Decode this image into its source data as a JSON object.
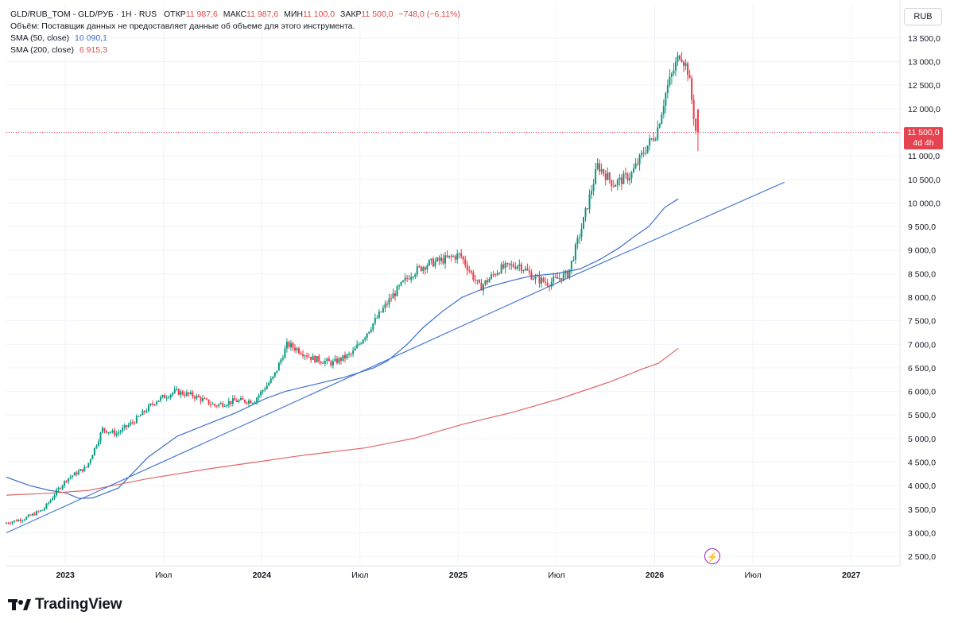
{
  "legend": {
    "symbol": "GLD/RUB_TOM - GLD/РУБ · 1H · RUS",
    "open_label": "ОТКР",
    "open_value": "11 987,6",
    "high_label": "МАКС",
    "high_value": "11 987,6",
    "low_label": "МИН",
    "low_value": "11 100,0",
    "close_label": "ЗАКР",
    "close_value": "11 500,0",
    "change_value": "−748,0 (−6,11%)",
    "volume_note": "Объём: Поставщик данных не предоставляет данные об объеме для этого инструмента.",
    "sma50_label": "SMA (50, close)",
    "sma50_value": "10 090,1",
    "sma200_label": "SMA (200, close)",
    "sma200_value": "6 915,3"
  },
  "currency_button": "RUB",
  "price_tag": {
    "price": "11 500,0",
    "countdown": "4d 4h"
  },
  "brand": "TradingView",
  "colors": {
    "up": "#089981",
    "down": "#f23645",
    "sma50": "#3d6dcc",
    "sma200": "#e06666",
    "trend": "#4a7ad6",
    "grid": "#f0f3fa",
    "text": "#131722"
  },
  "chart_data": {
    "type": "candlestick",
    "title": "GLD/RUB_TOM - GLD/РУБ",
    "ylim": [
      2300,
      13700
    ],
    "xlim": [
      2022.68,
      2027.22
    ],
    "y_ticks": [
      2500,
      3000,
      3500,
      4000,
      4500,
      5000,
      5500,
      6000,
      6500,
      7000,
      7500,
      8000,
      8500,
      9000,
      9500,
      10000,
      10500,
      11000,
      11500,
      12000,
      12500,
      13000,
      13500
    ],
    "y_tick_labels": [
      "2 500,0",
      "3 000,0",
      "3 500,0",
      "4 000,0",
      "4 500,0",
      "5 000,0",
      "5 500,0",
      "6 000,0",
      "6 500,0",
      "7 000,0",
      "7 500,0",
      "8 000,0",
      "8 500,0",
      "9 000,0",
      "9 500,0",
      "10 000,0",
      "10 500,0",
      "11 000,0",
      "11 500,0",
      "12 000,0",
      "12 500,0",
      "13 000,0",
      "13 500,0"
    ],
    "x_ticks": [
      {
        "t": 2022.98,
        "label": "2023",
        "bold": true
      },
      {
        "t": 2023.48,
        "label": "Июл",
        "bold": false
      },
      {
        "t": 2023.98,
        "label": "2024",
        "bold": true
      },
      {
        "t": 2024.48,
        "label": "Июл",
        "bold": false
      },
      {
        "t": 2024.98,
        "label": "2025",
        "bold": true
      },
      {
        "t": 2025.48,
        "label": "Июл",
        "bold": false
      },
      {
        "t": 2025.98,
        "label": "2026",
        "bold": true
      },
      {
        "t": 2026.48,
        "label": "Июл",
        "bold": false
      },
      {
        "t": 2026.98,
        "label": "2027",
        "bold": true
      }
    ],
    "price_anchors": [
      [
        2022.68,
        3200
      ],
      [
        2022.78,
        3300
      ],
      [
        2022.88,
        3500
      ],
      [
        2022.95,
        3900
      ],
      [
        2023.0,
        4150
      ],
      [
        2023.1,
        4400
      ],
      [
        2023.18,
        5200
      ],
      [
        2023.25,
        5100
      ],
      [
        2023.35,
        5400
      ],
      [
        2023.45,
        5800
      ],
      [
        2023.55,
        6000
      ],
      [
        2023.65,
        5900
      ],
      [
        2023.75,
        5700
      ],
      [
        2023.85,
        5800
      ],
      [
        2023.95,
        5800
      ],
      [
        2024.05,
        6300
      ],
      [
        2024.12,
        7000
      ],
      [
        2024.17,
        6900
      ],
      [
        2024.25,
        6700
      ],
      [
        2024.35,
        6600
      ],
      [
        2024.45,
        6800
      ],
      [
        2024.55,
        7400
      ],
      [
        2024.65,
        8000
      ],
      [
        2024.75,
        8500
      ],
      [
        2024.83,
        8700
      ],
      [
        2024.92,
        8800
      ],
      [
        2025.0,
        8900
      ],
      [
        2025.1,
        8200
      ],
      [
        2025.2,
        8600
      ],
      [
        2025.3,
        8700
      ],
      [
        2025.38,
        8400
      ],
      [
        2025.45,
        8300
      ],
      [
        2025.55,
        8500
      ],
      [
        2025.62,
        9500
      ],
      [
        2025.7,
        10800
      ],
      [
        2025.78,
        10400
      ],
      [
        2025.87,
        10600
      ],
      [
        2025.95,
        11200
      ],
      [
        2026.0,
        11500
      ],
      [
        2026.05,
        12400
      ],
      [
        2026.12,
        13200
      ],
      [
        2026.16,
        12800
      ],
      [
        2026.2,
        11500
      ]
    ],
    "last_candle": {
      "open": 11987.6,
      "high": 11987.6,
      "low": 11100.0,
      "close": 11500.0
    },
    "series": [
      {
        "name": "SMA (50, close)",
        "points": [
          [
            2022.68,
            4180
          ],
          [
            2022.8,
            4000
          ],
          [
            2022.9,
            3900
          ],
          [
            2022.98,
            3850
          ],
          [
            2023.05,
            3730
          ],
          [
            2023.12,
            3740
          ],
          [
            2023.25,
            3950
          ],
          [
            2023.4,
            4600
          ],
          [
            2023.55,
            5050
          ],
          [
            2023.7,
            5300
          ],
          [
            2023.85,
            5550
          ],
          [
            2024.0,
            5850
          ],
          [
            2024.1,
            6000
          ],
          [
            2024.25,
            6150
          ],
          [
            2024.4,
            6300
          ],
          [
            2024.55,
            6500
          ],
          [
            2024.62,
            6650
          ],
          [
            2024.72,
            7000
          ],
          [
            2024.8,
            7350
          ],
          [
            2024.9,
            7700
          ],
          [
            2025.0,
            8000
          ],
          [
            2025.12,
            8200
          ],
          [
            2025.25,
            8350
          ],
          [
            2025.35,
            8450
          ],
          [
            2025.48,
            8500
          ],
          [
            2025.6,
            8600
          ],
          [
            2025.7,
            8800
          ],
          [
            2025.8,
            9050
          ],
          [
            2025.88,
            9300
          ],
          [
            2025.95,
            9500
          ],
          [
            2026.03,
            9900
          ],
          [
            2026.1,
            10090
          ]
        ]
      },
      {
        "name": "SMA (200, close)",
        "points": [
          [
            2022.68,
            3800
          ],
          [
            2022.9,
            3840
          ],
          [
            2023.1,
            3900
          ],
          [
            2023.4,
            4150
          ],
          [
            2023.7,
            4350
          ],
          [
            2023.95,
            4500
          ],
          [
            2024.2,
            4650
          ],
          [
            2024.5,
            4800
          ],
          [
            2024.75,
            5000
          ],
          [
            2025.0,
            5300
          ],
          [
            2025.25,
            5550
          ],
          [
            2025.5,
            5850
          ],
          [
            2025.75,
            6200
          ],
          [
            2025.92,
            6480
          ],
          [
            2026.0,
            6600
          ],
          [
            2026.1,
            6915
          ]
        ]
      },
      {
        "name": "Trend line",
        "points": [
          [
            2022.68,
            3000
          ],
          [
            2025.48,
            8300
          ],
          [
            2026.64,
            10440
          ]
        ]
      }
    ]
  }
}
